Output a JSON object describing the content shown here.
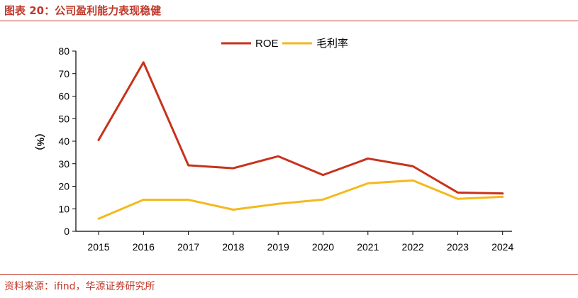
{
  "figure": {
    "title": "图表 20：公司盈利能力表现稳健",
    "source": "资料来源：ifind，华源证券研究所"
  },
  "colors": {
    "accent": "#c0392b",
    "roe": "#c8321c",
    "gross_margin": "#f5b91e"
  },
  "chart_data": {
    "type": "line",
    "title": "",
    "xlabel": "",
    "ylabel": "（%）",
    "x": [
      "2015",
      "2016",
      "2017",
      "2018",
      "2019",
      "2020",
      "2021",
      "2022",
      "2023",
      "2024"
    ],
    "ylim": [
      0,
      80
    ],
    "yticks": [
      0,
      10,
      20,
      30,
      40,
      50,
      60,
      70,
      80
    ],
    "grid": false,
    "legend_position": "top-center",
    "series": [
      {
        "name": "ROE",
        "color": "#c8321c",
        "values": [
          40.5,
          75.0,
          29.3,
          28.0,
          33.3,
          25.0,
          32.3,
          28.9,
          17.2,
          16.8
        ]
      },
      {
        "name": "毛利率",
        "color": "#f5b91e",
        "values": [
          5.6,
          14.0,
          14.0,
          9.6,
          12.2,
          14.1,
          21.3,
          22.6,
          14.4,
          15.3
        ]
      }
    ]
  }
}
